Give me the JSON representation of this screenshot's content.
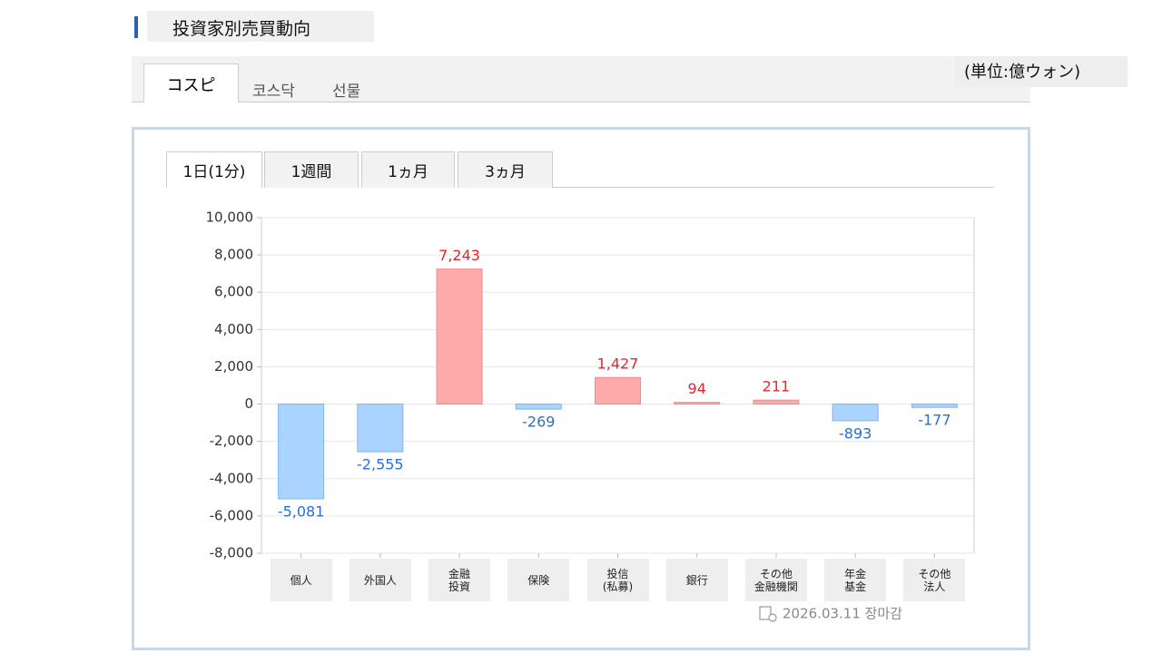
{
  "header": {
    "title": "投資家別売買動向"
  },
  "market_tabs": [
    "コスピ",
    "코스닥",
    "선물"
  ],
  "unit": "(単位:億ウォン)",
  "period_tabs": [
    "1日(1分)",
    "1週間",
    "1ヵ月",
    "3ヵ月"
  ],
  "chart_data": {
    "type": "bar",
    "categories": [
      "個人",
      "外国人",
      "金融\n投資",
      "保険",
      "投信\n(私募)",
      "銀行",
      "その他\n金融機関",
      "年金\n基金",
      "その他\n法人"
    ],
    "values": [
      -5081,
      -2555,
      7243,
      -269,
      1427,
      94,
      211,
      -893,
      -177
    ],
    "value_labels": [
      "-5,081",
      "-2,555",
      "7,243",
      "-269",
      "1,427",
      "94",
      "211",
      "-893",
      "-177"
    ],
    "positive_color": "#ffaaaa",
    "negative_color": "#aad4ff",
    "ylim": [
      -8000,
      10000
    ],
    "yticks": [
      {
        "value": -8000,
        "label": "-8,000"
      },
      {
        "value": -6000,
        "label": "-6,000"
      },
      {
        "value": -4000,
        "label": "-4,000"
      },
      {
        "value": -2000,
        "label": "-2,000"
      },
      0,
      {
        "value": 2000,
        "label": "2,000"
      },
      {
        "value": 4000,
        "label": "4,000"
      },
      {
        "value": 6000,
        "label": "6,000"
      },
      {
        "value": 8000,
        "label": "8,000"
      },
      {
        "value": 10000,
        "label": "10,000"
      }
    ],
    "grid": true
  },
  "footer": {
    "status": "2026.03.11 장마감"
  }
}
